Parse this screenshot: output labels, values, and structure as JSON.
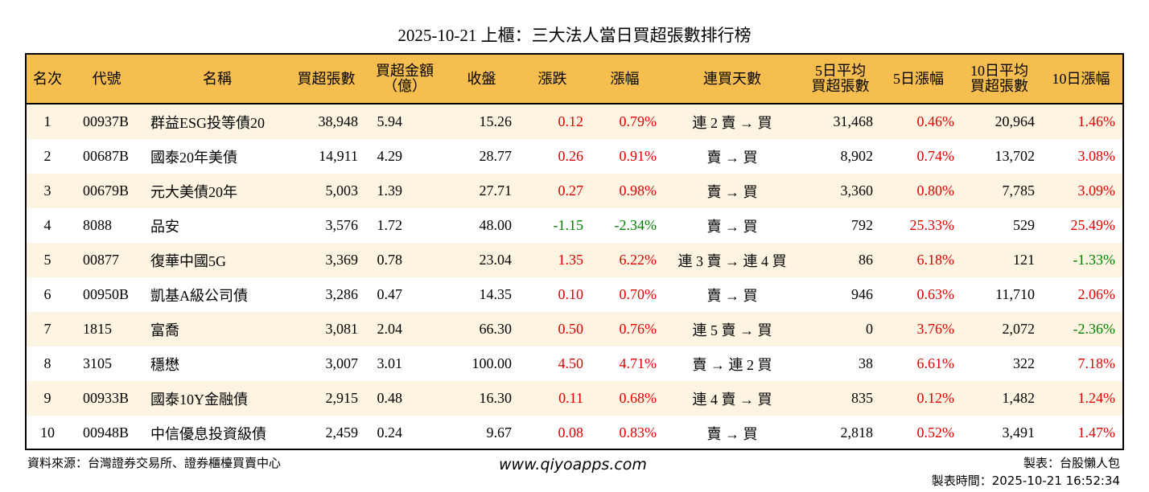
{
  "title": "2025-10-21 上櫃：三大法人當日買超張數排行榜",
  "headers": [
    "名次",
    "代號",
    "名稱",
    "買超張數",
    "買超金額\n（億）",
    "收盤",
    "漲跌",
    "漲幅",
    "連買天數",
    "5日平均\n買超張數",
    "5日漲幅",
    "10日平均\n買超張數",
    "10日漲幅"
  ],
  "colors": {
    "header": "#F6BD4F",
    "stripe": "#FDF4E1",
    "up": "#E00000",
    "down": "#008000"
  },
  "rows": [
    [
      "1",
      "00937B",
      "群益ESG投等債20",
      "38,948",
      "5.94",
      "15.26",
      "0.12",
      "0.79%",
      "連 2 賣 → 買",
      "31,468",
      "0.46%",
      "20,964",
      "1.46%"
    ],
    [
      "2",
      "00687B",
      "國泰20年美債",
      "14,911",
      "4.29",
      "28.77",
      "0.26",
      "0.91%",
      "賣 → 買",
      "8,902",
      "0.74%",
      "13,702",
      "3.08%"
    ],
    [
      "3",
      "00679B",
      "元大美債20年",
      "5,003",
      "1.39",
      "27.71",
      "0.27",
      "0.98%",
      "賣 → 買",
      "3,360",
      "0.80%",
      "7,785",
      "3.09%"
    ],
    [
      "4",
      "8088",
      "品安",
      "3,576",
      "1.72",
      "48.00",
      "-1.15",
      "-2.34%",
      "賣 → 買",
      "792",
      "25.33%",
      "529",
      "25.49%"
    ],
    [
      "5",
      "00877",
      "復華中國5G",
      "3,369",
      "0.78",
      "23.04",
      "1.35",
      "6.22%",
      "連 3 賣 → 連 4 買",
      "86",
      "6.18%",
      "121",
      "-1.33%"
    ],
    [
      "6",
      "00950B",
      "凱基A級公司債",
      "3,286",
      "0.47",
      "14.35",
      "0.10",
      "0.70%",
      "賣 → 買",
      "946",
      "0.63%",
      "11,710",
      "2.06%"
    ],
    [
      "7",
      "1815",
      "富喬",
      "3,081",
      "2.04",
      "66.30",
      "0.50",
      "0.76%",
      "連 5 賣 → 買",
      "0",
      "3.76%",
      "2,072",
      "-2.36%"
    ],
    [
      "8",
      "3105",
      "穩懋",
      "3,007",
      "3.01",
      "100.00",
      "4.50",
      "4.71%",
      "賣 → 連 2 買",
      "38",
      "6.61%",
      "322",
      "7.18%"
    ],
    [
      "9",
      "00933B",
      "國泰10Y金融債",
      "2,915",
      "0.48",
      "16.30",
      "0.11",
      "0.68%",
      "連 4 賣 → 買",
      "835",
      "0.12%",
      "1,482",
      "1.24%"
    ],
    [
      "10",
      "00948B",
      "中信優息投資級債",
      "2,459",
      "0.24",
      "9.67",
      "0.08",
      "0.83%",
      "賣 → 買",
      "2,818",
      "0.52%",
      "3,491",
      "1.47%"
    ]
  ],
  "footer": {
    "source": "資料來源：台灣證券交易所、證券櫃檯買賣中心",
    "website": "www.qiyoapps.com",
    "author": "製表：台股懶人包",
    "time": "製表時間：2025-10-21 16:52:34"
  }
}
